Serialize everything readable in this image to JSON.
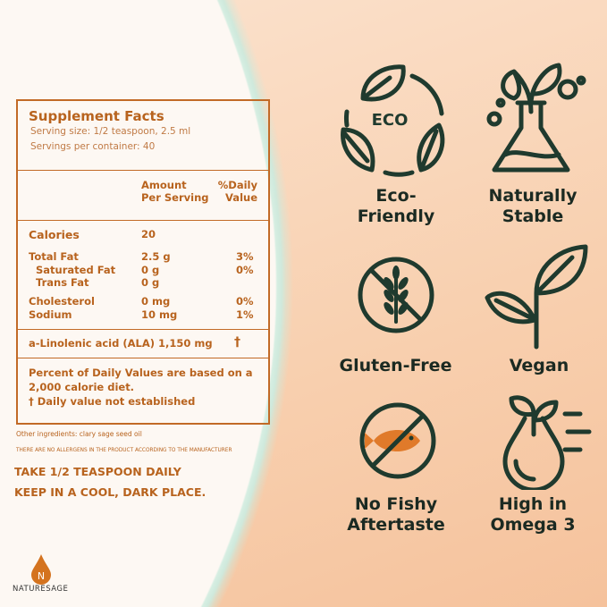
{
  "facts": {
    "title": "Supplement Facts",
    "serving_size": "Serving size: 1/2 teaspoon, 2.5 ml",
    "servings": "Servings per container: 40",
    "col_amount": [
      "Amount",
      "Per Serving"
    ],
    "col_dv": [
      "%Daily",
      "Value"
    ],
    "rows": [
      {
        "name": "Calories",
        "amount": "20",
        "dv": ""
      },
      {
        "name": "Total Fat",
        "amount": "2.5 g",
        "dv": "3%"
      },
      {
        "name": "Saturated Fat",
        "amount": "0 g",
        "dv": "0%"
      },
      {
        "name": "Trans Fat",
        "amount": "0 g",
        "dv": ""
      },
      {
        "name": "Cholesterol",
        "amount": "0 mg",
        "dv": "0%"
      },
      {
        "name": "Sodium",
        "amount": "10 mg",
        "dv": "1%"
      }
    ],
    "ala": "a-Linolenic acid (ALA) 1,150 mg",
    "ala_dv": "†",
    "note1": "Percent of Daily Values are based on a 2,000 calorie diet.",
    "note2": "† Daily value not established"
  },
  "other_ingredients": "Other ingredients: clary sage seed oil",
  "allergens": "THERE ARE NO ALLERGENS IN THE PRODUCT ACCORDING TO THE MANUFACTURER",
  "directions": [
    "TAKE 1/2 TEASPOON DAILY",
    "KEEP IN A COOL, DARK PLACE."
  ],
  "brand": {
    "name": "NATURESAGE",
    "logo_letter": "N"
  },
  "features": [
    {
      "label": "Eco-\nFriendly",
      "icon": "eco-leaves-icon",
      "icon_text": "ECO"
    },
    {
      "label": "Naturally\nStable",
      "icon": "flask-plant-icon"
    },
    {
      "label": "Gluten-Free",
      "icon": "no-wheat-icon"
    },
    {
      "label": "Vegan",
      "icon": "sprout-icon"
    },
    {
      "label": "No Fishy\nAftertaste",
      "icon": "no-fish-icon"
    },
    {
      "label": "High in\nOmega 3",
      "icon": "oil-drop-plant-icon"
    }
  ],
  "colors": {
    "text": "#b8631e",
    "icons": "#1f3a2e",
    "fish": "#e07a2a"
  }
}
